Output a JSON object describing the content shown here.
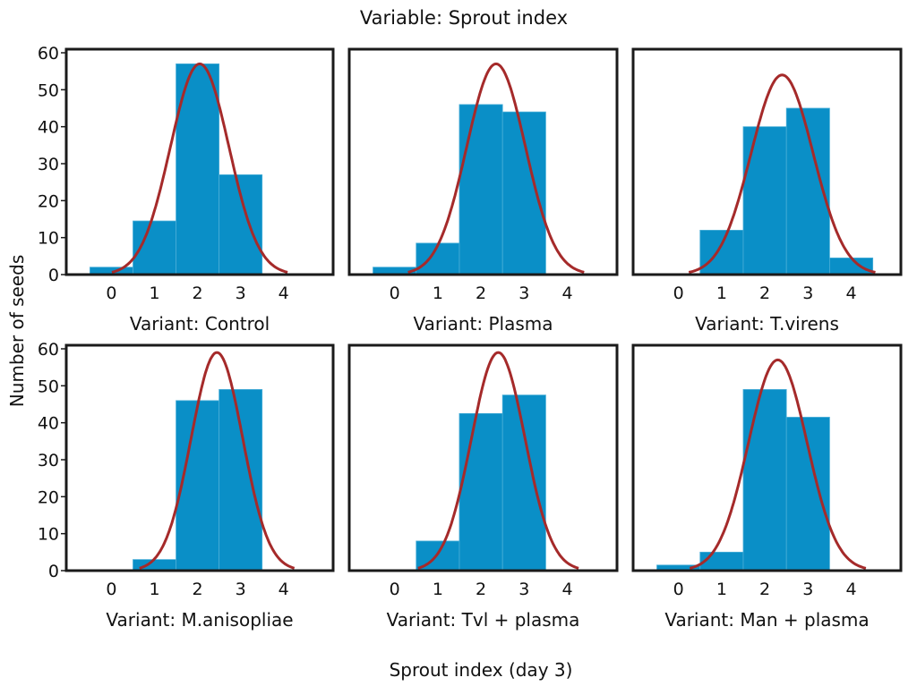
{
  "chart_data": {
    "type": "bar",
    "title": "Variable: Sprout index",
    "ylabel": "Number of seeds",
    "xlabel": "Sprout index (day 3)",
    "categories": [
      "0",
      "1",
      "2",
      "3",
      "4"
    ],
    "x": [
      0,
      1,
      2,
      3,
      4
    ],
    "ylim": [
      0,
      60
    ],
    "yticks": [
      "0",
      "10",
      "20",
      "30",
      "40",
      "50",
      "60"
    ],
    "grid": false,
    "panels": [
      {
        "name": "Variant: Control",
        "values": [
          2,
          14.5,
          57,
          27,
          0
        ],
        "curve": {
          "mean": 2.05,
          "sd": 0.68,
          "peak": 57
        }
      },
      {
        "name": "Variant: Plasma",
        "values": [
          2,
          8.5,
          46,
          44,
          0
        ],
        "curve": {
          "mean": 2.35,
          "sd": 0.68,
          "peak": 57
        }
      },
      {
        "name": "Variant: T.virens",
        "values": [
          0,
          12,
          40,
          45,
          4.5
        ],
        "curve": {
          "mean": 2.4,
          "sd": 0.72,
          "peak": 54
        }
      },
      {
        "name": "Variant: M.anisopliae",
        "values": [
          0,
          3,
          46,
          49,
          0
        ],
        "curve": {
          "mean": 2.45,
          "sd": 0.6,
          "peak": 59
        }
      },
      {
        "name": "Variant: Tvl + plasma",
        "values": [
          0,
          8,
          42.5,
          47.5,
          0
        ],
        "curve": {
          "mean": 2.4,
          "sd": 0.62,
          "peak": 59
        }
      },
      {
        "name": "Variant: Man + plasma",
        "values": [
          1.5,
          5,
          49,
          41.5,
          0
        ],
        "curve": {
          "mean": 2.3,
          "sd": 0.68,
          "peak": 57
        }
      }
    ]
  }
}
